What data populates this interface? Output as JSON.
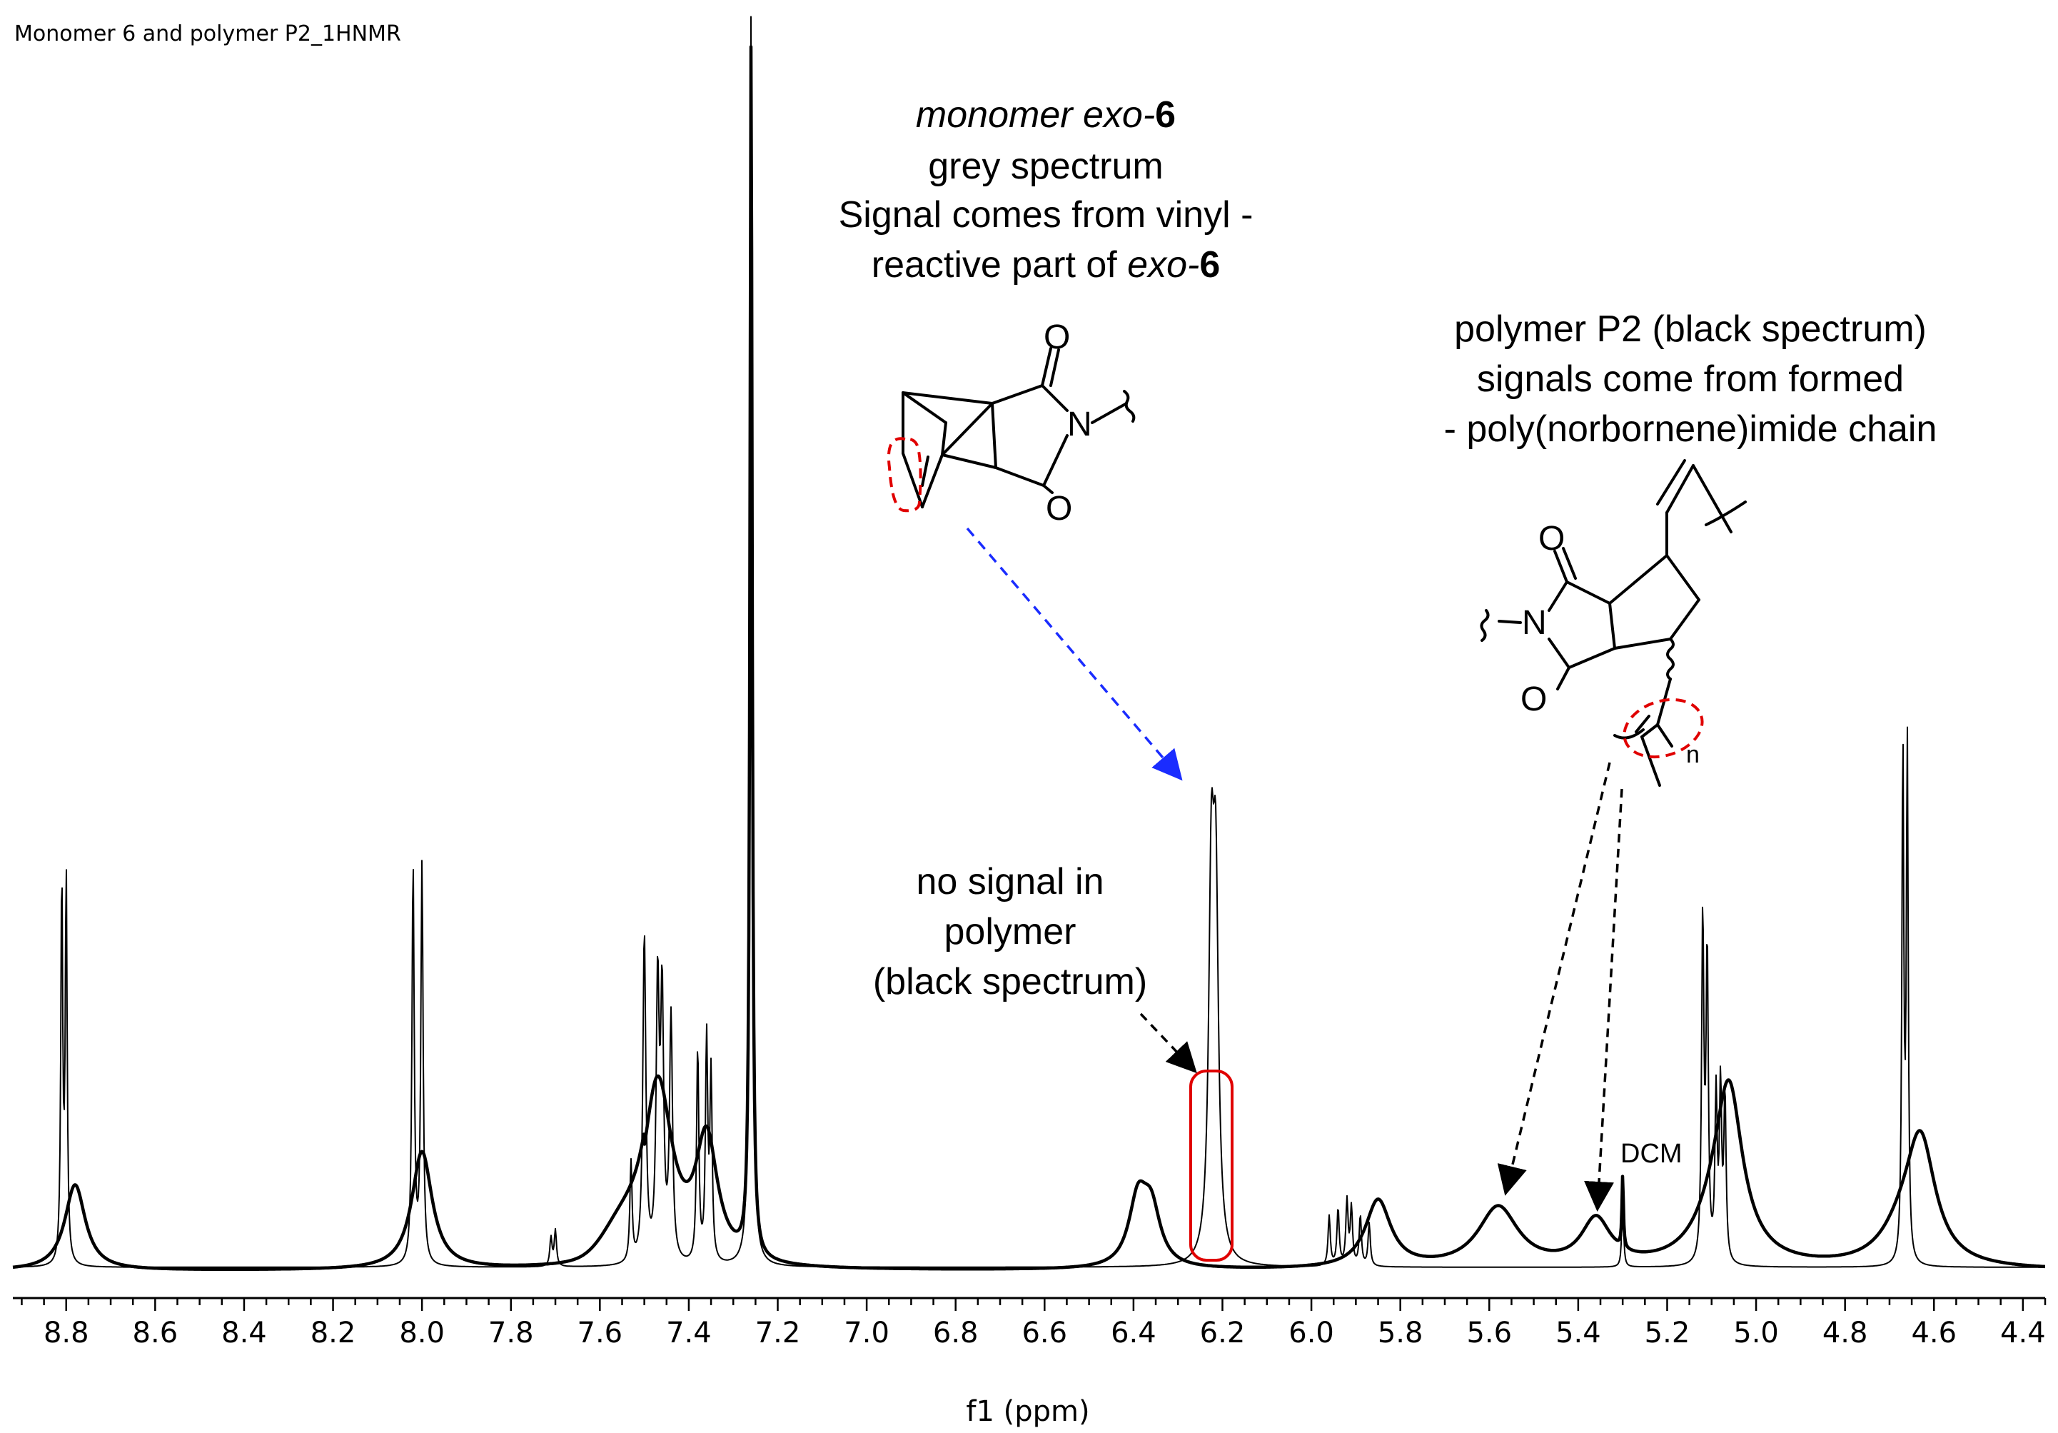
{
  "chart_data": {
    "type": "line",
    "title": "Monomer 6 and polymer P2_1HNMR",
    "xlabel": "f1 (ppm)",
    "ylabel": "",
    "xlim": [
      8.92,
      4.35
    ],
    "x_reversed": true,
    "grid": false,
    "ticks": [
      "8.8",
      "8.6",
      "8.4",
      "8.2",
      "8.0",
      "7.8",
      "7.6",
      "7.4",
      "7.2",
      "7.0",
      "6.8",
      "6.6",
      "6.4",
      "6.2",
      "6.0",
      "5.8",
      "5.6",
      "5.4",
      "5.2",
      "5.0",
      "4.8",
      "4.6",
      "4.4"
    ],
    "series": [
      {
        "name": "monomer exo-6 (grey spectrum, thin line)",
        "peaks_ppm": [
          8.81,
          8.8,
          8.02,
          8.0,
          7.71,
          7.7,
          7.53,
          7.5,
          7.47,
          7.46,
          7.44,
          7.38,
          7.36,
          7.35,
          7.26,
          6.22,
          5.96,
          5.94,
          5.92,
          5.91,
          5.89,
          5.87,
          5.3,
          5.12,
          5.11,
          5.09,
          5.08,
          5.07,
          4.67,
          4.66
        ]
      },
      {
        "name": "polymer P2 (black spectrum, thick line)",
        "peaks_ppm": [
          8.78,
          8.0,
          7.46,
          7.35,
          7.26,
          6.38,
          5.85,
          5.57,
          5.36,
          5.3,
          5.05,
          4.63
        ]
      }
    ]
  },
  "annotations": {
    "monomer_label": {
      "italic_part": "monomer exo-",
      "bold_part": "6",
      "line2": "grey spectrum",
      "line3": "Signal comes from vinyl -",
      "line4_prefix": "reactive part of ",
      "line4_italic": "exo-",
      "line4_bold": "6"
    },
    "polymer_label": {
      "line1": "polymer P2 (black spectrum)",
      "line2": "signals come from formed",
      "line3": "- poly(norbornene)imide chain"
    },
    "no_signal": {
      "line1": "no signal in",
      "line2": "polymer",
      "line3": "(black spectrum)"
    },
    "dcm_label": "DCM"
  },
  "structures": {
    "monomer_atoms": {
      "o_top": "O",
      "n": "N",
      "o_bottom": "O"
    },
    "polymer_atoms": {
      "o_top": "O",
      "n": "N",
      "o_bottom": "O",
      "n_subscript": "n"
    }
  },
  "colors": {
    "spectrum": "#000000",
    "highlight": "#e00000",
    "arrow_blue": "#1a2cff",
    "arrow_black": "#000000"
  }
}
